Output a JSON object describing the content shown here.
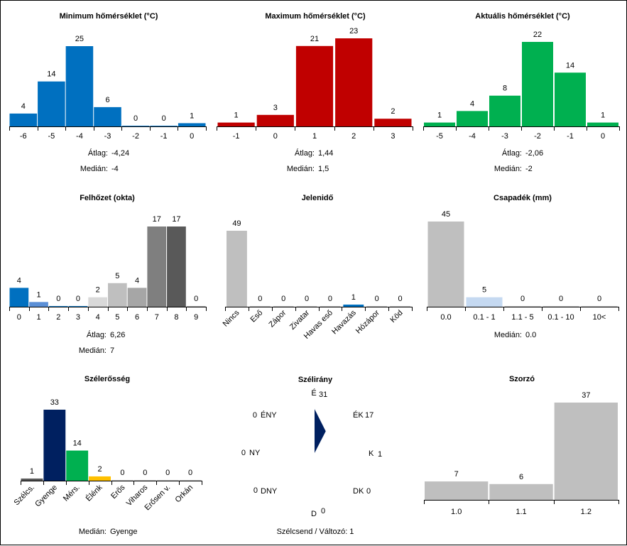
{
  "colors": {
    "blue": "#0070c0",
    "lightblue": "#5b8fd6",
    "paleblue": "#c5d9f1",
    "red": "#c00000",
    "green": "#00b050",
    "navy": "#002060",
    "yellow": "#ffc000",
    "lightgray": "#d9d9d9",
    "midgray": "#bfbfbf",
    "gray": "#a6a6a6",
    "darkgray1": "#7f7f7f",
    "darkgray2": "#595959",
    "dimgray": "#595959"
  },
  "chart_data": [
    {
      "id": "min",
      "type": "bar",
      "title": "Minimum hőmérséklet (°C)",
      "categories": [
        "-6",
        "-5",
        "-4",
        "-3",
        "-2",
        "-1",
        "0"
      ],
      "values": [
        4,
        14,
        25,
        6,
        0,
        0,
        1
      ],
      "colors": [
        "blue",
        "blue",
        "blue",
        "blue",
        "blue",
        "blue",
        "blue"
      ],
      "ylim": [
        0,
        25
      ],
      "stats": [
        {
          "label": "Átlag:",
          "value": "-4,24"
        },
        {
          "label": "Medián:",
          "value": "-4"
        }
      ]
    },
    {
      "id": "max",
      "type": "bar",
      "title": "Maximum hőmérséklet (°C)",
      "categories": [
        "-1",
        "0",
        "1",
        "2",
        "3"
      ],
      "values": [
        1,
        3,
        21,
        23,
        2
      ],
      "colors": [
        "red",
        "red",
        "red",
        "red",
        "red"
      ],
      "ylim": [
        0,
        23
      ],
      "stats": [
        {
          "label": "Átlag:",
          "value": "1,44"
        },
        {
          "label": "Medián:",
          "value": "1,5"
        }
      ]
    },
    {
      "id": "cur",
      "type": "bar",
      "title": "Aktuális hőmérséklet (°C)",
      "categories": [
        "-5",
        "-4",
        "-3",
        "-2",
        "-1",
        "0"
      ],
      "values": [
        1,
        4,
        8,
        22,
        14,
        1
      ],
      "colors": [
        "green",
        "green",
        "green",
        "green",
        "green",
        "green"
      ],
      "ylim": [
        0,
        22
      ],
      "stats": [
        {
          "label": "Átlag:",
          "value": "-2,06"
        },
        {
          "label": "Medián:",
          "value": "-2"
        }
      ]
    },
    {
      "id": "cloud",
      "type": "bar",
      "title": "Felhőzet (okta)",
      "categories": [
        "0",
        "1",
        "2",
        "3",
        "4",
        "5",
        "6",
        "7",
        "8",
        "9"
      ],
      "values": [
        4,
        1,
        0,
        0,
        2,
        5,
        4,
        17,
        17,
        0
      ],
      "colors": [
        "blue",
        "lightblue",
        "blue",
        "blue",
        "lightgray",
        "midgray",
        "gray",
        "darkgray1",
        "darkgray2",
        "gray"
      ],
      "ylim": [
        0,
        17
      ],
      "stats": [
        {
          "label": "Átlag:",
          "value": "6,26"
        },
        {
          "label": "Medián:",
          "value": "7"
        }
      ]
    },
    {
      "id": "wx",
      "type": "bar",
      "title": "Jelenidő",
      "categories": [
        "Nincs",
        "Eső",
        "Zápor",
        "Zivatar",
        "Havas eső",
        "Havazás",
        "Hózápor",
        "Köd"
      ],
      "values": [
        49,
        0,
        0,
        0,
        0,
        1,
        0,
        0
      ],
      "colors": [
        "midgray",
        "midgray",
        "midgray",
        "midgray",
        "midgray",
        "blue",
        "midgray",
        "midgray"
      ],
      "ylim": [
        0,
        49
      ],
      "rotated": true,
      "stats": []
    },
    {
      "id": "precip",
      "type": "bar",
      "title": "Csapadék (mm)",
      "categories": [
        "0.0",
        "0.1 - 1",
        "1.1 - 5",
        "0.1 - 10",
        "10<"
      ],
      "values": [
        45,
        5,
        0,
        0,
        0
      ],
      "colors": [
        "midgray",
        "paleblue",
        "midgray",
        "midgray",
        "midgray"
      ],
      "ylim": [
        0,
        45
      ],
      "stats": [
        {
          "label": "Medián:",
          "value": "0.0"
        }
      ]
    },
    {
      "id": "windstr",
      "type": "bar",
      "title": "Szélerősség",
      "categories": [
        "Szélcs.",
        "Gyenge",
        "Mérs.",
        "Élénk",
        "Erős",
        "Viharos",
        "Erősen v.",
        "Orkán"
      ],
      "values": [
        1,
        33,
        14,
        2,
        0,
        0,
        0,
        0
      ],
      "colors": [
        "dimgray",
        "navy",
        "green",
        "yellow",
        "midgray",
        "midgray",
        "midgray",
        "midgray"
      ],
      "ylim": [
        0,
        33
      ],
      "rotated": true,
      "stats": [
        {
          "label": "Medián:",
          "value": "Gyenge"
        }
      ]
    },
    {
      "id": "winddir",
      "type": "wind-rose",
      "title": "Szélirány",
      "directions": [
        {
          "label": "É",
          "value": 31
        },
        {
          "label": "ÉK",
          "value": 17
        },
        {
          "label": "K",
          "value": 1
        },
        {
          "label": "DK",
          "value": 0
        },
        {
          "label": "D",
          "value": 0
        },
        {
          "label": "DNY",
          "value": 0
        },
        {
          "label": "NY",
          "value": 0
        },
        {
          "label": "ÉNY",
          "value": 0
        }
      ],
      "footer": "Szélcsend / Változó: 1"
    },
    {
      "id": "mult",
      "type": "bar",
      "title": "Szorzó",
      "categories": [
        "1.0",
        "1.1",
        "1.2"
      ],
      "values": [
        7,
        6,
        37
      ],
      "colors": [
        "midgray",
        "midgray",
        "midgray"
      ],
      "ylim": [
        0,
        37
      ],
      "stats": []
    }
  ]
}
